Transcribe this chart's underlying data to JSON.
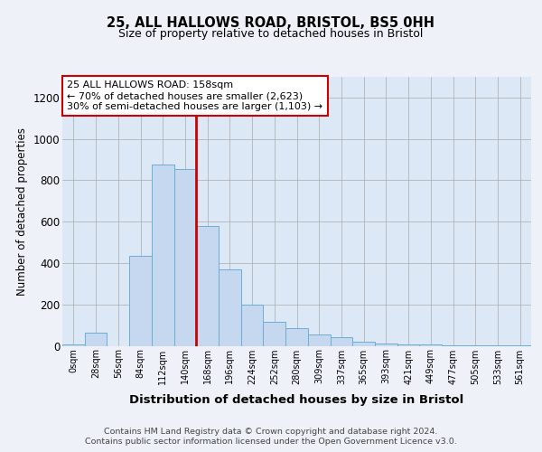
{
  "title1": "25, ALL HALLOWS ROAD, BRISTOL, BS5 0HH",
  "title2": "Size of property relative to detached houses in Bristol",
  "xlabel": "Distribution of detached houses by size in Bristol",
  "ylabel": "Number of detached properties",
  "bin_labels": [
    "0sqm",
    "28sqm",
    "56sqm",
    "84sqm",
    "112sqm",
    "140sqm",
    "168sqm",
    "196sqm",
    "224sqm",
    "252sqm",
    "280sqm",
    "309sqm",
    "337sqm",
    "365sqm",
    "393sqm",
    "421sqm",
    "449sqm",
    "477sqm",
    "505sqm",
    "533sqm",
    "561sqm"
  ],
  "bar_heights": [
    7,
    65,
    0,
    435,
    875,
    855,
    580,
    370,
    200,
    115,
    85,
    55,
    40,
    18,
    13,
    8,
    5,
    2,
    1,
    1,
    1
  ],
  "bar_color": "#c5d8f0",
  "bar_edgecolor": "#6baed6",
  "annotation_text": "25 ALL HALLOWS ROAD: 158sqm\n← 70% of detached houses are smaller (2,623)\n30% of semi-detached houses are larger (1,103) →",
  "annotation_box_edgecolor": "#cc0000",
  "vline_color": "#cc0000",
  "footer1": "Contains HM Land Registry data © Crown copyright and database right 2024.",
  "footer2": "Contains public sector information licensed under the Open Government Licence v3.0.",
  "ylim": [
    0,
    1300
  ],
  "yticks": [
    0,
    200,
    400,
    600,
    800,
    1000,
    1200
  ],
  "bg_color": "#eef2f8",
  "plot_bg_color": "#dce8f5"
}
